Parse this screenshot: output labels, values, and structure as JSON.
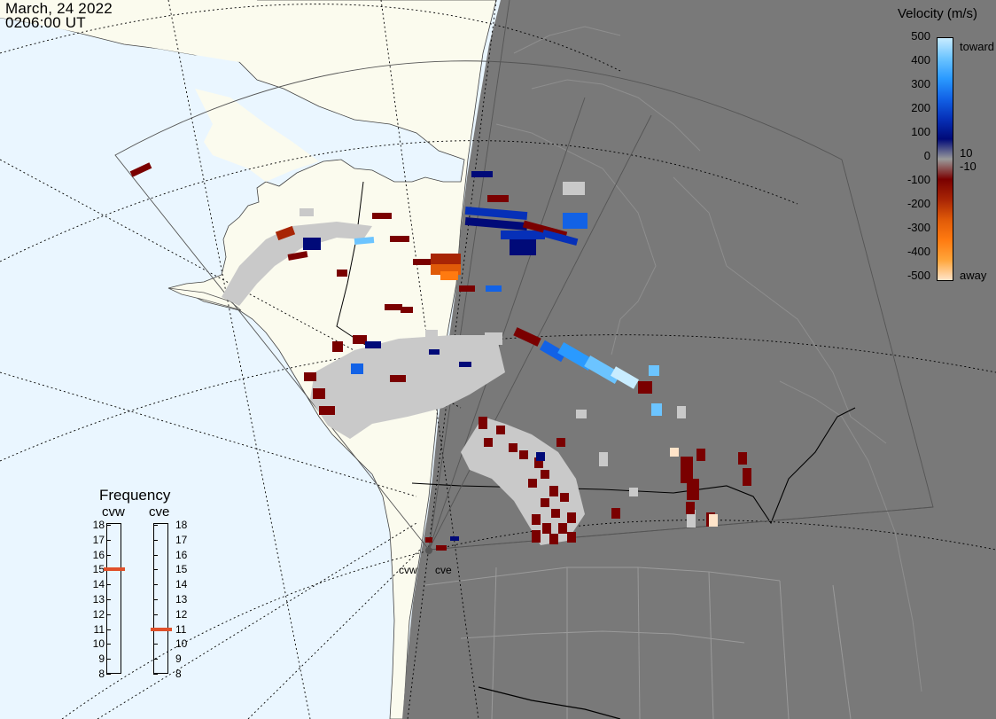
{
  "header": {
    "date": "March, 24 2022",
    "time": "0206:00 UT"
  },
  "legend": {
    "title": "Velocity (m/s)",
    "ticks": [
      "500",
      "400",
      "300",
      "200",
      "100",
      "10",
      "0",
      "-10",
      "-100",
      "-200",
      "-300",
      "-400",
      "-500"
    ],
    "top_word": "toward",
    "bottom_word": "away",
    "colors": [
      "#ffe4c9",
      "#ffa53a",
      "#ff7a10",
      "#e05a08",
      "#a82505",
      "#7a0000",
      "#9a9a9a",
      "#000a78",
      "#0630b8",
      "#1262e6",
      "#2a9aff",
      "#6cc4ff",
      "#c8ecff"
    ]
  },
  "frequency": {
    "title": "Frequency",
    "radars": [
      {
        "name": "cvw",
        "value_mhz": 15
      },
      {
        "name": "cve",
        "value_mhz": 11
      }
    ],
    "scale": [
      "18",
      "17",
      "16",
      "15",
      "14",
      "13",
      "12",
      "11",
      "10",
      "9",
      "8"
    ]
  },
  "sites": [
    "cvw",
    "cve"
  ],
  "colors": {
    "ocean": "#eaf6ff",
    "land_day": "#fbfbee",
    "night": "#797979",
    "no_velocity": "#c9c9c9"
  }
}
